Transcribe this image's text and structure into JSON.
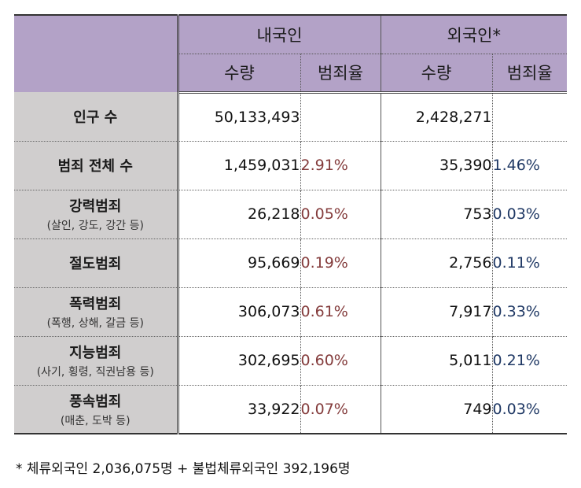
{
  "header": {
    "domestic_label": "내국인",
    "foreign_label": "외국인*",
    "quantity_label": "수량",
    "rate_label": "범죄율"
  },
  "rows": [
    {
      "label": "인구 수",
      "sub": "",
      "dom_qty": "50,133,493",
      "dom_rate": "",
      "for_qty": "2,428,271",
      "for_rate": ""
    },
    {
      "label": "범죄 전체 수",
      "sub": "",
      "dom_qty": "1,459,031",
      "dom_rate": "2.91%",
      "for_qty": "35,390",
      "for_rate": "1.46%"
    },
    {
      "label": "강력범죄",
      "sub": "(살인, 강도, 강간 등)",
      "dom_qty": "26,218",
      "dom_rate": "0.05%",
      "for_qty": "753",
      "for_rate": "0.03%"
    },
    {
      "label": "절도범죄",
      "sub": "",
      "dom_qty": "95,669",
      "dom_rate": "0.19%",
      "for_qty": "2,756",
      "for_rate": "0.11%"
    },
    {
      "label": "폭력범죄",
      "sub": "(폭행, 상해, 갈금 등)",
      "dom_qty": "306,073",
      "dom_rate": "0.61%",
      "for_qty": "7,917",
      "for_rate": "0.33%"
    },
    {
      "label": "지능범죄",
      "sub": "(사기, 횡령, 직권남용 등)",
      "dom_qty": "302,695",
      "dom_rate": "0.60%",
      "for_qty": "5,011",
      "for_rate": "0.21%"
    },
    {
      "label": "풍속범죄",
      "sub": "(매춘, 도박 등)",
      "dom_qty": "33,922",
      "dom_rate": "0.07%",
      "for_qty": "749",
      "for_rate": "0.03%"
    }
  ],
  "footnote": "* 체류외국인 2,036,075명 + 불법체류외국인 392,196명",
  "colors": {
    "header_bg": "#b3a2c7",
    "label_bg": "#d0cece",
    "domestic_rate": "#843c3c",
    "foreign_rate": "#1f3864"
  }
}
